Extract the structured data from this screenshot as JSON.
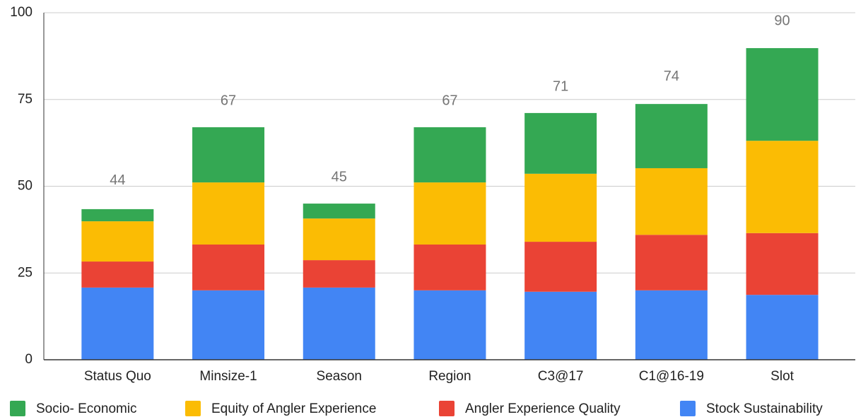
{
  "chart_data": {
    "type": "stacked_bar",
    "categories": [
      "Status Quo",
      "Minsize-1",
      "Season",
      "Region",
      "C3@17",
      "C1@16-19",
      "Slot"
    ],
    "series": [
      {
        "name": "Socio- Economic",
        "color": "#34a853",
        "values": [
          3.5,
          15.9,
          4.3,
          15.9,
          17.5,
          18.5,
          26.7
        ]
      },
      {
        "name": "Equity of Angler Experience",
        "color": "#fbbc04",
        "values": [
          11.6,
          17.9,
          12.0,
          17.9,
          19.6,
          19.2,
          26.6
        ]
      },
      {
        "name": "Angler Experience Quality",
        "color": "#ea4335",
        "values": [
          7.5,
          13.2,
          7.9,
          13.2,
          14.4,
          16.0,
          17.8
        ]
      },
      {
        "name": "Stock Sustainability",
        "color": "#4285f4",
        "values": [
          20.8,
          20.0,
          20.8,
          20.0,
          19.6,
          20.0,
          18.7
        ]
      }
    ],
    "totals": [
      44,
      67,
      45,
      67,
      71,
      74,
      90
    ],
    "ylim": [
      0,
      100
    ],
    "yticks": [
      0,
      25,
      50,
      75,
      100
    ],
    "grid": true,
    "legend": "bottom"
  }
}
